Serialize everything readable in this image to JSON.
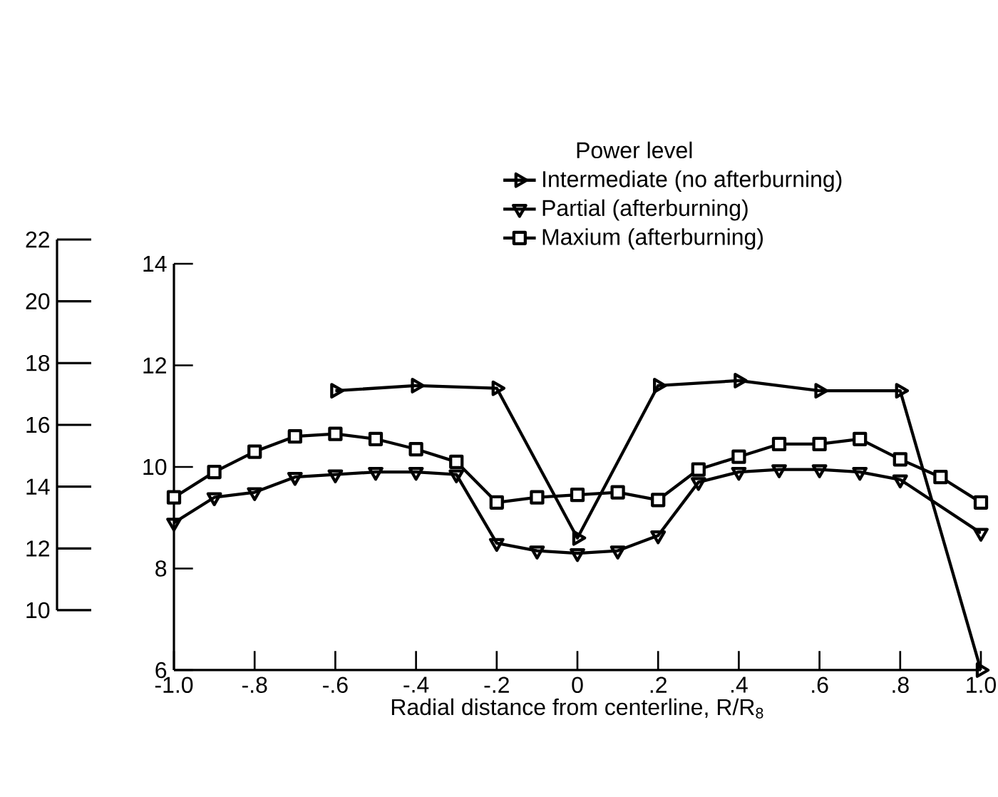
{
  "chart_data": {
    "type": "line",
    "xlabel": "Radial distance from centerline, R/R$_{8}$",
    "legend_title": "Power level",
    "legend": "top",
    "xlim": [
      -1.0,
      1.0
    ],
    "xticks": [
      {
        "value": -1.0,
        "label": "-1.0"
      },
      {
        "value": -0.8,
        "label": "-.8"
      },
      {
        "value": -0.6,
        "label": "-.6"
      },
      {
        "value": -0.4,
        "label": "-.4"
      },
      {
        "value": -0.2,
        "label": "-.2"
      },
      0,
      {
        "value": 0.2,
        "label": ".2"
      },
      {
        "value": 0.4,
        "label": ".4"
      },
      {
        "value": 0.6,
        "label": ".6"
      },
      {
        "value": 0.8,
        "label": ".8"
      },
      {
        "value": 1.0,
        "label": "1.0"
      }
    ],
    "ylim": [
      6,
      14
    ],
    "yticks": [
      6,
      8,
      10,
      12,
      14
    ],
    "y2lim": [
      10,
      22
    ],
    "y2ticks": [
      10,
      12,
      14,
      16,
      18,
      20,
      22
    ],
    "grid": false,
    "line_style": "solid",
    "series": [
      {
        "name": "Intermediate (no afterburning)",
        "color": "#000000",
        "marker": "triangle-right",
        "x": [
          -0.6,
          -0.4,
          -0.2,
          0,
          0.2,
          0.4,
          0.6,
          0.8,
          1.0
        ],
        "values": [
          11.5,
          11.6,
          11.55,
          8.6,
          11.6,
          11.7,
          11.5,
          11.5,
          6
        ]
      },
      {
        "name": "Partial (afterburning)",
        "color": "#000000",
        "marker": "triangle-down",
        "x": [
          -1.0,
          -0.9,
          -0.8,
          -0.7,
          -0.6,
          -0.5,
          -0.4,
          -0.3,
          -0.2,
          -0.1,
          0,
          0.1,
          0.2,
          0.3,
          0.4,
          0.5,
          0.6,
          0.7,
          0.8,
          1.0
        ],
        "values": [
          8.9,
          9.4,
          9.5,
          9.8,
          9.85,
          9.9,
          9.9,
          9.85,
          8.5,
          8.35,
          8.3,
          8.35,
          8.65,
          9.7,
          9.9,
          9.95,
          9.95,
          9.9,
          9.75,
          8.7
        ]
      },
      {
        "name": "Maxium (afterburning)",
        "color": "#000000",
        "marker": "square",
        "x": [
          -1.0,
          -0.9,
          -0.8,
          -0.7,
          -0.6,
          -0.5,
          -0.4,
          -0.3,
          -0.2,
          -0.1,
          0,
          0.1,
          0.2,
          0.3,
          0.4,
          0.5,
          0.6,
          0.7,
          0.8,
          0.9,
          1.0
        ],
        "values": [
          9.4,
          9.9,
          10.3,
          10.6,
          10.65,
          10.55,
          10.35,
          10.1,
          9.3,
          9.4,
          9.45,
          9.5,
          9.35,
          9.95,
          10.2,
          10.45,
          10.45,
          10.55,
          10.15,
          9.8,
          9.3
        ]
      }
    ]
  }
}
